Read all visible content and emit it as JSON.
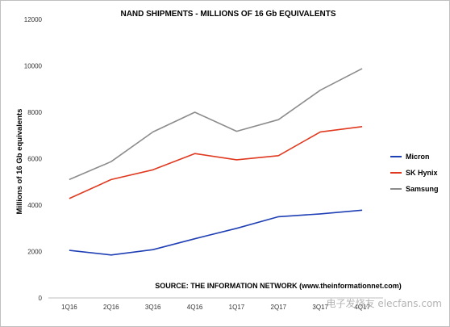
{
  "chart_data": {
    "type": "line",
    "title": "NAND SHIPMENTS - MILLIONS OF 16 Gb EQUIVALENTS",
    "xlabel": "",
    "ylabel": "Millions of 16 Gb equivalents",
    "categories": [
      "1Q16",
      "2Q16",
      "3Q16",
      "4Q16",
      "1Q17",
      "2Q17",
      "3Q17",
      "4Q17"
    ],
    "ylim": [
      0,
      12000
    ],
    "yticks": [
      0,
      2000,
      4000,
      6000,
      8000,
      10000,
      12000
    ],
    "grid": false,
    "legend_position": "right",
    "series": [
      {
        "name": "Micron",
        "color": "#1f3fb5",
        "values": [
          2050,
          1850,
          2080,
          2550,
          3000,
          3500,
          3620,
          3780
        ]
      },
      {
        "name": "SK Hynix",
        "color": "#e0391f",
        "values": [
          4280,
          5100,
          5520,
          6220,
          5950,
          6130,
          7150,
          7380
        ]
      },
      {
        "name": "Samsung",
        "color": "#8c8c8c",
        "values": [
          5100,
          5870,
          7150,
          8000,
          7180,
          7680,
          8950,
          9880
        ]
      }
    ],
    "annotations": [
      "SOURCE: THE INFORMATION NETWORK (www.theinformationnet.com)"
    ]
  },
  "watermark": "电子发烧友 elecfans.com"
}
